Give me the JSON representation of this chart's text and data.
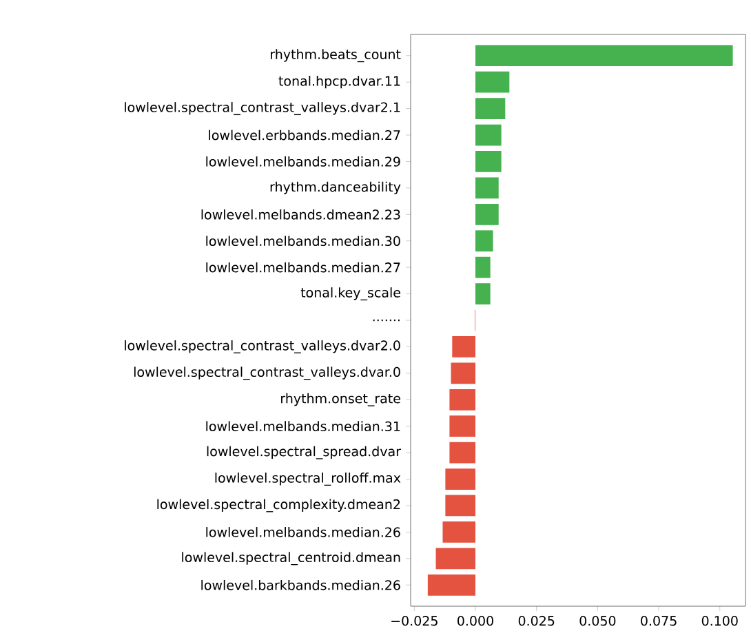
{
  "chart_data": {
    "type": "bar",
    "orientation": "horizontal",
    "categories": [
      "rhythm.beats_count",
      "tonal.hpcp.dvar.11",
      "lowlevel.spectral_contrast_valleys.dvar2.1",
      "lowlevel.erbbands.median.27",
      "lowlevel.melbands.median.29",
      "rhythm.danceability",
      "lowlevel.melbands.dmean2.23",
      "lowlevel.melbands.median.30",
      "lowlevel.melbands.median.27",
      "tonal.key_scale",
      ".......",
      "lowlevel.spectral_contrast_valleys.dvar2.0",
      "lowlevel.spectral_contrast_valleys.dvar.0",
      "rhythm.onset_rate",
      "lowlevel.melbands.median.31",
      "lowlevel.spectral_spread.dvar",
      "lowlevel.spectral_rolloff.max",
      "lowlevel.spectral_complexity.dmean2",
      "lowlevel.melbands.median.26",
      "lowlevel.spectral_centroid.dmean",
      "lowlevel.barkbands.median.26"
    ],
    "values": [
      0.1053,
      0.0139,
      0.0122,
      0.0106,
      0.0106,
      0.0095,
      0.0095,
      0.0072,
      0.0061,
      0.0061,
      -0.0002,
      -0.0095,
      -0.01,
      -0.0106,
      -0.0106,
      -0.0106,
      -0.0123,
      -0.0123,
      -0.0134,
      -0.0162,
      -0.0195
    ],
    "colors": [
      "#45b14f",
      "#45b14f",
      "#45b14f",
      "#45b14f",
      "#45b14f",
      "#45b14f",
      "#45b14f",
      "#45b14f",
      "#45b14f",
      "#45b14f",
      "#e45340",
      "#e45340",
      "#e45340",
      "#e45340",
      "#e45340",
      "#e45340",
      "#e45340",
      "#e45340",
      "#e45340",
      "#e45340",
      "#e45340"
    ],
    "xlim": [
      -0.0265,
      0.1105
    ],
    "xticks": [
      {
        "value": -0.025,
        "label": "−0.025"
      },
      {
        "value": 0,
        "label": "0.000"
      },
      {
        "value": 0.025,
        "label": "0.025"
      },
      {
        "value": 0.05,
        "label": "0.050"
      },
      {
        "value": 0.075,
        "label": "0.075"
      },
      {
        "value": 0.1,
        "label": "0.100"
      }
    ]
  }
}
